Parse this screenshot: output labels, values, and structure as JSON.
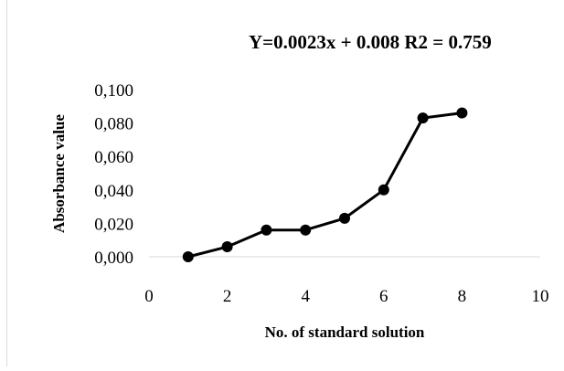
{
  "chart_data": {
    "type": "line",
    "title": "Y=0.0023x + 0.008 R2 = 0.759",
    "xlabel": "No. of standard solution",
    "ylabel": "Absorbance value",
    "xlim": [
      0,
      10
    ],
    "ylim": [
      0,
      0.1
    ],
    "x_ticks": [
      "0",
      "2",
      "4",
      "6",
      "8",
      "10"
    ],
    "y_ticks": [
      "0,000",
      "0,020",
      "0,040",
      "0,060",
      "0,080",
      "0,100"
    ],
    "grid": false,
    "legend": "none",
    "series": [
      {
        "x": [
          1,
          2,
          3,
          4,
          5,
          6,
          7,
          8
        ],
        "y": [
          0.0,
          0.006,
          0.016,
          0.016,
          0.023,
          0.04,
          0.083,
          0.086
        ],
        "color": "#000000",
        "marker": "circle"
      }
    ]
  }
}
